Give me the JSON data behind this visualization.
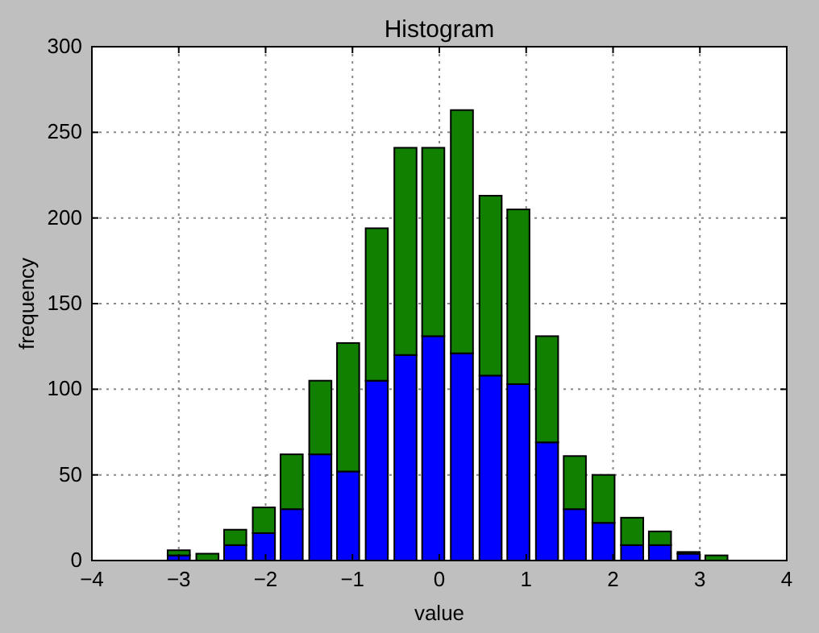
{
  "chart_data": {
    "type": "bar",
    "title": "Histogram",
    "xlabel": "value",
    "ylabel": "frequency",
    "x": [
      -3.0,
      -2.67,
      -2.35,
      -2.02,
      -1.7,
      -1.37,
      -1.05,
      -0.72,
      -0.39,
      -0.07,
      0.26,
      0.59,
      0.91,
      1.24,
      1.56,
      1.89,
      2.22,
      2.54,
      2.87,
      3.19
    ],
    "series": [
      {
        "color": "#0000ff",
        "values": [
          3,
          0,
          9,
          16,
          30,
          62,
          52,
          105,
          120,
          131,
          121,
          108,
          103,
          69,
          30,
          22,
          9,
          9,
          4,
          0
        ]
      },
      {
        "color": "#118000",
        "values": [
          3,
          4,
          9,
          15,
          32,
          43,
          75,
          89,
          121,
          110,
          142,
          105,
          102,
          62,
          31,
          28,
          16,
          8,
          1,
          3
        ]
      }
    ],
    "stacked": true,
    "xlim": [
      -4,
      4
    ],
    "xticks": [
      {
        "value": -4,
        "label": "−4"
      },
      {
        "value": -3,
        "label": "−3"
      },
      {
        "value": -2,
        "label": "−2"
      },
      {
        "value": -1,
        "label": "−1"
      },
      0,
      1,
      2,
      3,
      4
    ],
    "ylim": [
      0,
      300
    ],
    "yticks": [
      0,
      50,
      100,
      150,
      200,
      250,
      300
    ],
    "grid": true
  }
}
